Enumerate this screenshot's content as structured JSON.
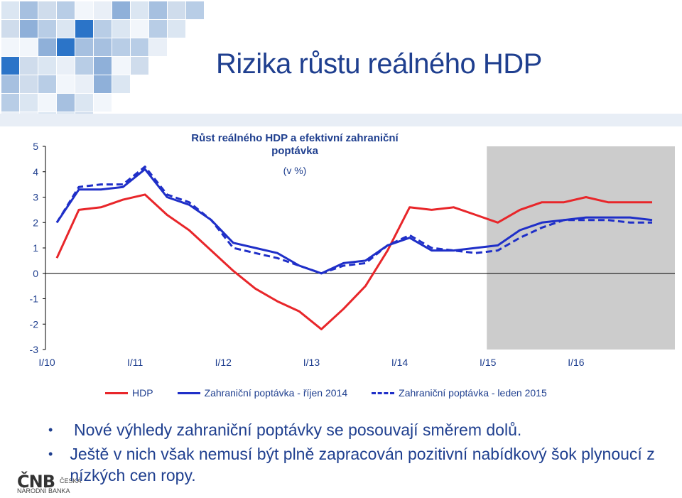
{
  "slide": {
    "title": "Rizika růstu reálného HDP",
    "bullets": [
      "Nové výhledy zahraniční poptávky se posouvají směrem dolů.",
      "Ještě v nich však nemusí být plně zapracován pozitivní nabídkový šok plynoucí z nízkých cen ropy."
    ],
    "logo": {
      "mark": "ČNB",
      "line1": "ČESKÁ",
      "line2": "NÁRODNÍ BANKA"
    }
  },
  "colors": {
    "hdp": "#e8262a",
    "oct2014": "#1f2fc8",
    "jan2015": "#1f2fc8",
    "forecast_shade": "#cccccc",
    "title_blue": "#1f3f8f"
  },
  "chart_data": {
    "type": "line",
    "title": "Růst reálného HDP a efektivní zahraniční poptávka",
    "subtitle": "(v %)",
    "xlabel": "",
    "ylabel": "",
    "ylim": [
      -3,
      5
    ],
    "yticks": [
      "5",
      "4",
      "3",
      "2",
      "1",
      "0",
      "-1",
      "-2",
      "-3"
    ],
    "xtick_labels": [
      "I/10",
      "I/11",
      "I/12",
      "I/13",
      "I/14",
      "I/15",
      "I/16"
    ],
    "x": [
      "I/10",
      "II/10",
      "III/10",
      "IV/10",
      "I/11",
      "II/11",
      "III/11",
      "IV/11",
      "I/12",
      "II/12",
      "III/12",
      "IV/12",
      "I/13",
      "II/13",
      "III/13",
      "IV/13",
      "I/14",
      "II/14",
      "III/14",
      "IV/14",
      "I/15",
      "II/15",
      "III/15",
      "IV/15",
      "I/16",
      "II/16",
      "III/16",
      "IV/16"
    ],
    "forecast_start_index": 19.5,
    "series": [
      {
        "name": "HDP",
        "style": "solid",
        "color": "#e8262a",
        "values": [
          0.6,
          2.5,
          2.6,
          2.9,
          3.1,
          2.3,
          1.7,
          0.9,
          0.1,
          -0.6,
          -1.1,
          -1.5,
          -2.2,
          -1.4,
          -0.5,
          0.9,
          2.6,
          2.5,
          2.6,
          2.3,
          2.0,
          2.5,
          2.8,
          2.8,
          3.0,
          2.8,
          2.8,
          2.8
        ]
      },
      {
        "name": "Zahraniční poptávka - říjen 2014",
        "style": "solid",
        "color": "#1f2fc8",
        "values": [
          2.0,
          3.3,
          3.3,
          3.4,
          4.1,
          3.0,
          2.7,
          2.1,
          1.2,
          1.0,
          0.8,
          0.3,
          0.0,
          0.4,
          0.5,
          1.1,
          1.4,
          0.9,
          0.9,
          1.0,
          1.1,
          1.7,
          2.0,
          2.1,
          2.2,
          2.2,
          2.2,
          2.1
        ]
      },
      {
        "name": "Zahraniční poptávka - leden 2015",
        "style": "dashed",
        "color": "#1f2fc8",
        "values": [
          2.0,
          3.4,
          3.5,
          3.5,
          4.2,
          3.1,
          2.8,
          2.1,
          1.0,
          0.8,
          0.6,
          0.3,
          0.0,
          0.3,
          0.4,
          1.1,
          1.5,
          1.0,
          0.9,
          0.8,
          0.9,
          1.4,
          1.8,
          2.1,
          2.1,
          2.1,
          2.0,
          2.0
        ]
      }
    ]
  }
}
